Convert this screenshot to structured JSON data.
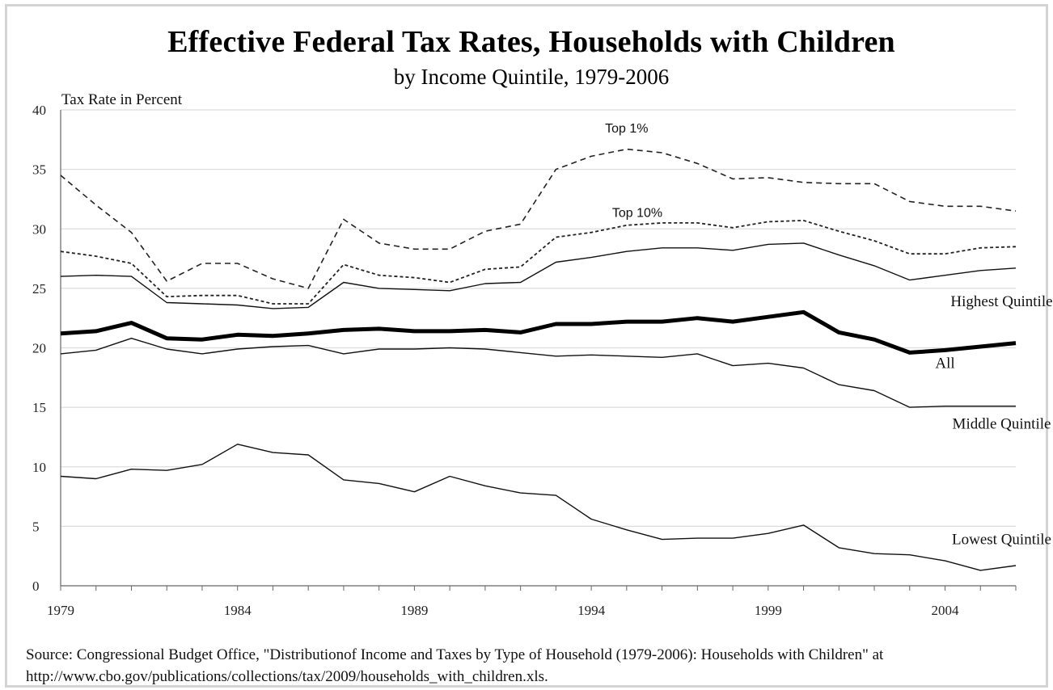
{
  "chart_data": {
    "type": "line",
    "title": "Effective Federal Tax Rates, Households with Children",
    "subtitle": "by Income Quintile, 1979-2006",
    "ylabel": "Tax Rate in Percent",
    "xlabel": "",
    "ylim": [
      0,
      40
    ],
    "xlim": [
      1979,
      2006
    ],
    "yticks": [
      "0",
      "5",
      "10",
      "15",
      "20",
      "25",
      "30",
      "35",
      "40"
    ],
    "xticks": [
      "1979",
      "1984",
      "1989",
      "1994",
      "1999",
      "2004"
    ],
    "grid": true,
    "x": [
      1979,
      1980,
      1981,
      1982,
      1983,
      1984,
      1985,
      1986,
      1987,
      1988,
      1989,
      1990,
      1991,
      1992,
      1993,
      1994,
      1995,
      1996,
      1997,
      1998,
      1999,
      2000,
      2001,
      2002,
      2003,
      2004,
      2005,
      2006
    ],
    "series": [
      {
        "name": "Top 1%",
        "style": "dashed",
        "values": [
          34.5,
          32.0,
          29.7,
          25.6,
          27.1,
          27.1,
          25.8,
          25.0,
          30.8,
          28.8,
          28.3,
          28.3,
          29.8,
          30.4,
          35.0,
          36.1,
          36.7,
          36.4,
          35.5,
          34.2,
          34.3,
          33.9,
          33.8,
          33.8,
          32.3,
          31.9,
          31.9,
          31.5
        ]
      },
      {
        "name": "Top 10%",
        "style": "dotted",
        "values": [
          28.1,
          27.7,
          27.1,
          24.3,
          24.4,
          24.4,
          23.7,
          23.7,
          27.0,
          26.1,
          25.9,
          25.5,
          26.6,
          26.8,
          29.3,
          29.7,
          30.3,
          30.5,
          30.5,
          30.1,
          30.6,
          30.7,
          29.8,
          29.0,
          27.9,
          27.9,
          28.4,
          28.5
        ]
      },
      {
        "name": "Highest Quintile",
        "style": "solid",
        "values": [
          26.0,
          26.1,
          26.0,
          23.8,
          23.7,
          23.6,
          23.3,
          23.4,
          25.5,
          25.0,
          24.9,
          24.8,
          25.4,
          25.5,
          27.2,
          27.6,
          28.1,
          28.4,
          28.4,
          28.2,
          28.7,
          28.8,
          27.8,
          26.9,
          25.7,
          26.1,
          26.5,
          26.7
        ]
      },
      {
        "name": "All",
        "style": "thick",
        "values": [
          21.2,
          21.4,
          22.1,
          20.8,
          20.7,
          21.1,
          21.0,
          21.2,
          21.5,
          21.6,
          21.4,
          21.4,
          21.5,
          21.3,
          22.0,
          22.0,
          22.2,
          22.2,
          22.5,
          22.2,
          22.6,
          23.0,
          21.3,
          20.7,
          19.6,
          19.8,
          20.1,
          20.4
        ]
      },
      {
        "name": "Middle Quintile",
        "style": "solid",
        "values": [
          19.5,
          19.8,
          20.8,
          19.9,
          19.5,
          19.9,
          20.1,
          20.2,
          19.5,
          19.9,
          19.9,
          20.0,
          19.9,
          19.6,
          19.3,
          19.4,
          19.3,
          19.2,
          19.5,
          18.5,
          18.7,
          18.3,
          16.9,
          16.4,
          15.0,
          15.1,
          15.1,
          15.1
        ]
      },
      {
        "name": "Lowest Quintile",
        "style": "solid",
        "values": [
          9.2,
          9.0,
          9.8,
          9.7,
          10.2,
          11.9,
          11.2,
          11.0,
          8.9,
          8.6,
          7.9,
          9.2,
          8.4,
          7.8,
          7.6,
          5.6,
          4.7,
          3.9,
          4.0,
          4.0,
          4.4,
          5.1,
          3.2,
          2.7,
          2.6,
          2.1,
          1.3,
          1.7
        ]
      }
    ],
    "annotations": [
      {
        "text": "Top 1%",
        "x": 1995.0,
        "y": 38.1
      },
      {
        "text": "Top 10%",
        "x": 1995.3,
        "y": 31.0
      },
      {
        "text": "Highest Quintile",
        "x": 2005.6,
        "y": 23.5
      },
      {
        "text": "All",
        "x": 2004.0,
        "y": 18.3
      },
      {
        "text": "Middle Quintile",
        "x": 2005.6,
        "y": 13.2
      },
      {
        "text": "Lowest Quintile",
        "x": 2005.6,
        "y": 3.5
      }
    ]
  },
  "source": "Source: Congressional Budget Office, \"Distributionof Income and Taxes by Type of Household (1979-2006): Households with Children\" at http://www.cbo.gov/publications/collections/tax/2009/households_with_children.xls."
}
